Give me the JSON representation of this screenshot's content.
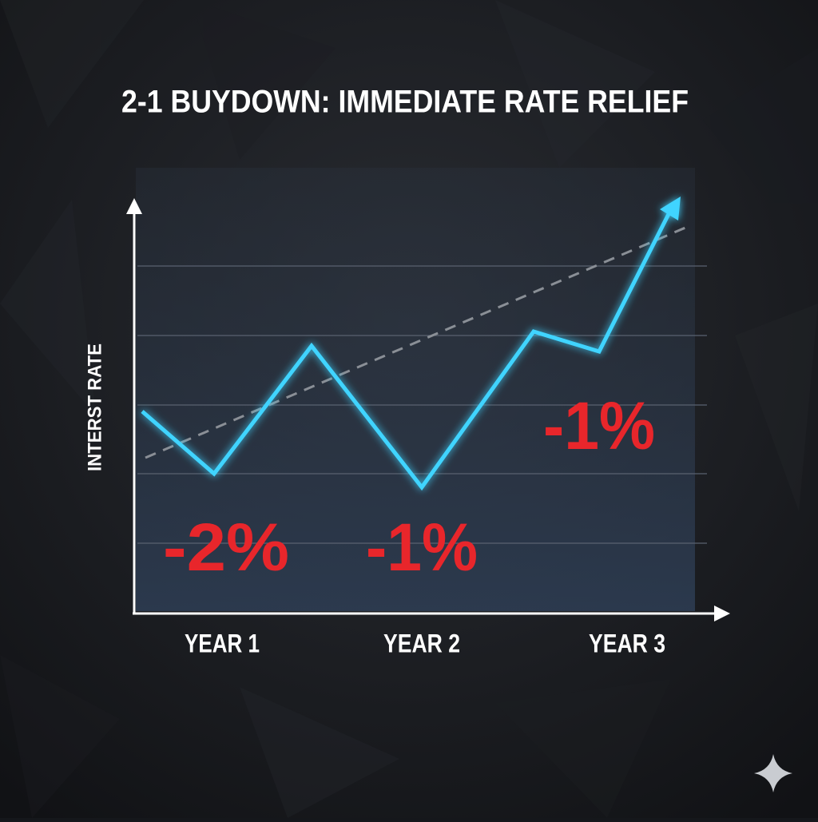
{
  "chart_data": {
    "type": "line",
    "title": "2-1 BUYDOWN: IMMEDIATE RATE RELIEF",
    "y_label": "INTERST RATE",
    "categories": [
      "YEAR 1",
      "YEAR 2",
      "YEAR 3"
    ],
    "annotations": [
      "-2%",
      "-1%",
      "-1%"
    ],
    "color": "#3fd4ff",
    "annotation_color": "#e8262b"
  }
}
